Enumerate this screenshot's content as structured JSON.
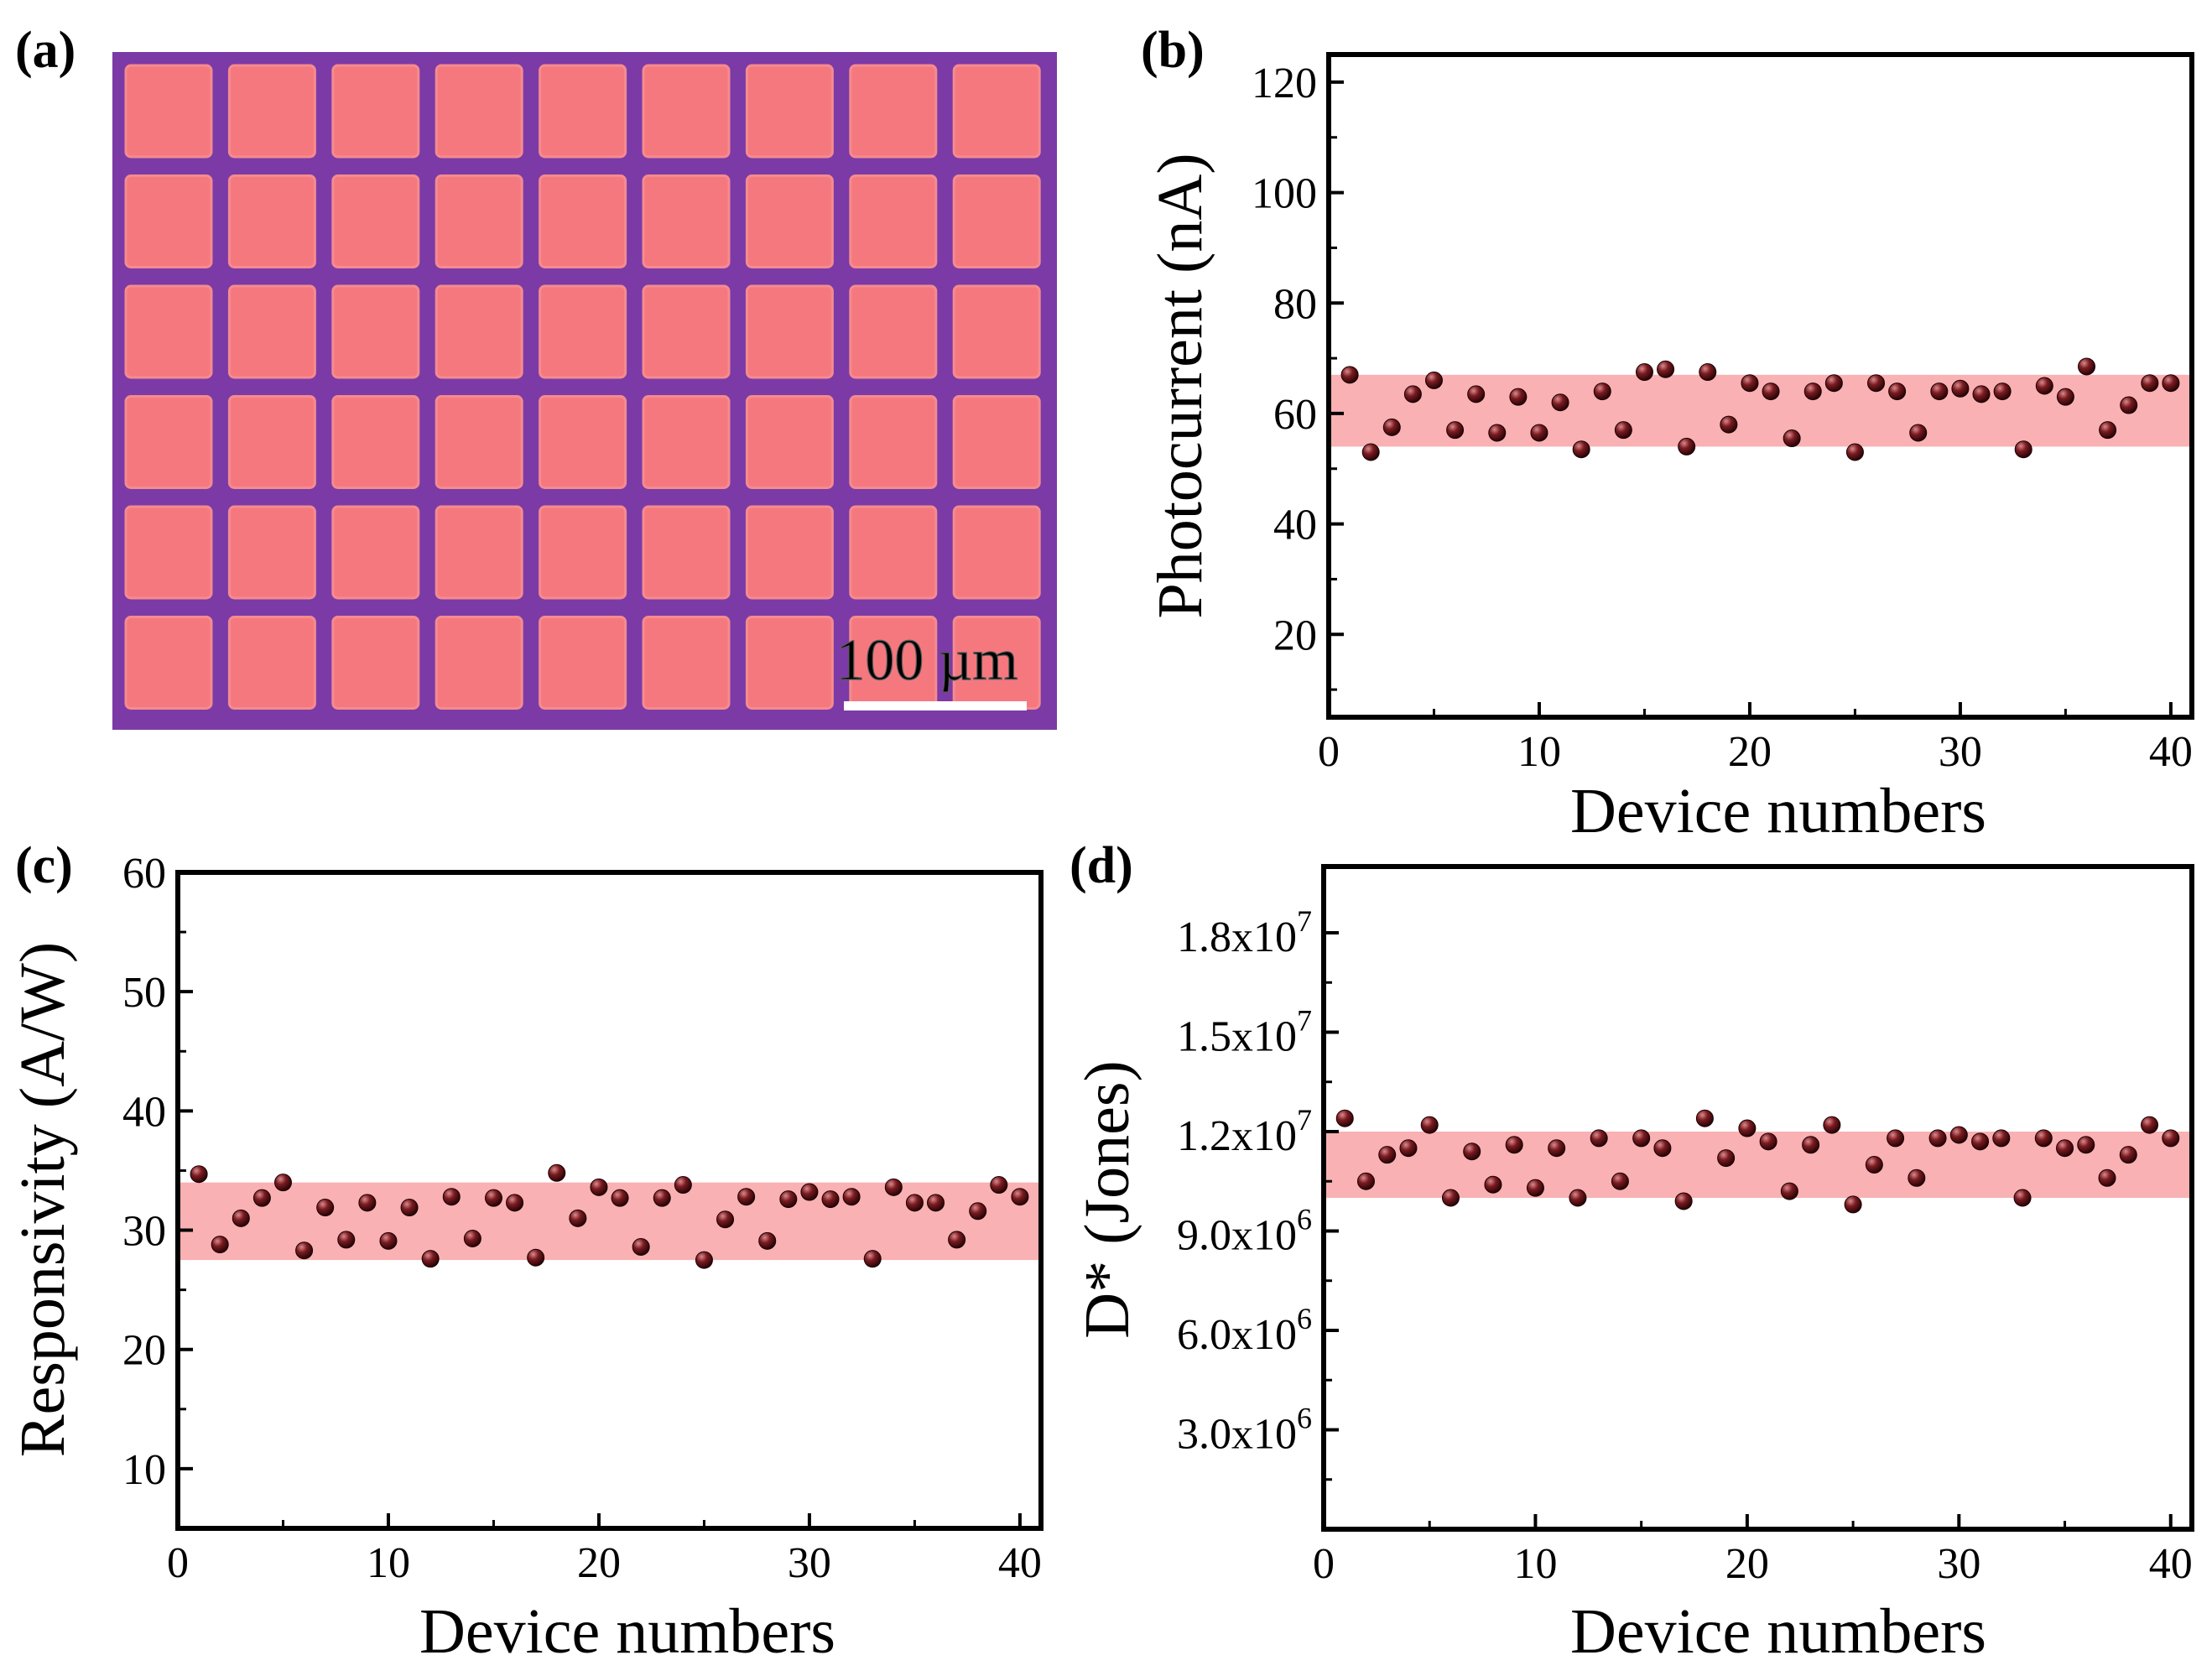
{
  "figure": {
    "panel_labels": [
      "(a)",
      "(b)",
      "(c)",
      "(d)"
    ]
  },
  "micrograph": {
    "scale_bar_label": "100 µm",
    "rows": 6,
    "cols": 9,
    "colors": {
      "background": "#7b3aa6",
      "pad": "#f6787f",
      "pad_edge": "#f48b8f",
      "scale_bar": "#ffffff"
    }
  },
  "chart_data": [
    {
      "panel": "(b)",
      "type": "scatter",
      "xlabel": "Device numbers",
      "ylabel": "Photocurrent (nA)",
      "xlim": [
        0,
        41
      ],
      "ylim": [
        5,
        125
      ],
      "xticks": [
        0,
        10,
        20,
        30,
        40
      ],
      "xtick_labels": [
        "0",
        "10",
        "20",
        "30",
        "40"
      ],
      "yticks": [
        20,
        40,
        60,
        80,
        100,
        120
      ],
      "ytick_labels": [
        "20",
        "40",
        "60",
        "80",
        "100",
        "120"
      ],
      "band": [
        54,
        67
      ],
      "x": [
        1,
        2,
        3,
        4,
        5,
        6,
        7,
        8,
        9,
        10,
        11,
        12,
        13,
        14,
        15,
        16,
        17,
        18,
        19,
        20,
        21,
        22,
        23,
        24,
        25,
        26,
        27,
        28,
        29,
        30,
        31,
        32,
        33,
        34,
        35,
        36,
        37,
        38,
        39,
        40
      ],
      "values": [
        67,
        53,
        57.5,
        63.5,
        66,
        57,
        63.5,
        56.5,
        63,
        56.5,
        62,
        53.5,
        64,
        57,
        67.5,
        68,
        54,
        67.5,
        58,
        65.5,
        64,
        55.5,
        64,
        65.5,
        53,
        65.5,
        64,
        56.5,
        64,
        64.5,
        63.5,
        64,
        53.5,
        65,
        63,
        68.5,
        57,
        61.5,
        65.5,
        65.5
      ]
    },
    {
      "panel": "(c)",
      "type": "scatter",
      "xlabel": "Device numbers",
      "ylabel": "Responsivity (A/W)",
      "xlim": [
        0,
        41
      ],
      "ylim": [
        5,
        60
      ],
      "xticks": [
        0,
        10,
        20,
        30,
        40
      ],
      "xtick_labels": [
        "0",
        "10",
        "20",
        "30",
        "40"
      ],
      "yticks": [
        10,
        20,
        30,
        40,
        50,
        60
      ],
      "ytick_labels": [
        "10",
        "20",
        "30",
        "40",
        "50",
        "60"
      ],
      "band": [
        27.5,
        34
      ],
      "x": [
        1,
        2,
        3,
        4,
        5,
        6,
        7,
        8,
        9,
        10,
        11,
        12,
        13,
        14,
        15,
        16,
        17,
        18,
        19,
        20,
        21,
        22,
        23,
        24,
        25,
        26,
        27,
        28,
        29,
        30,
        31,
        32,
        33,
        34,
        35,
        36,
        37,
        38,
        39,
        40
      ],
      "values": [
        34.7,
        28.8,
        31,
        32.7,
        34,
        28.3,
        31.9,
        29.2,
        32.3,
        29.1,
        31.9,
        27.6,
        32.8,
        29.3,
        32.7,
        32.3,
        27.7,
        34.8,
        31,
        33.6,
        32.7,
        28.6,
        32.7,
        33.8,
        27.5,
        30.9,
        32.8,
        29.1,
        32.6,
        33.2,
        32.6,
        32.8,
        27.6,
        33.6,
        32.3,
        32.3,
        29.2,
        31.6,
        33.8,
        32.8
      ]
    },
    {
      "panel": "(d)",
      "type": "scatter",
      "xlabel": "Device numbers",
      "ylabel": "D* (Jones)",
      "xlim": [
        0,
        41
      ],
      "ylim": [
        0,
        20000000
      ],
      "xticks": [
        0,
        10,
        20,
        30,
        40
      ],
      "xtick_labels": [
        "0",
        "10",
        "20",
        "30",
        "40"
      ],
      "yticks": [
        3000000,
        6000000,
        9000000,
        12000000,
        15000000,
        18000000
      ],
      "ytick_labels": [
        {
          "mantissa": "3.0x10",
          "exp": "6"
        },
        {
          "mantissa": "6.0x10",
          "exp": "6"
        },
        {
          "mantissa": "9.0x10",
          "exp": "6"
        },
        {
          "mantissa": "1.2x10",
          "exp": "7"
        },
        {
          "mantissa": "1.5x10",
          "exp": "7"
        },
        {
          "mantissa": "1.8x10",
          "exp": "7"
        }
      ],
      "band": [
        10000000,
        12000000
      ],
      "x": [
        1,
        2,
        3,
        4,
        5,
        6,
        7,
        8,
        9,
        10,
        11,
        12,
        13,
        14,
        15,
        16,
        17,
        18,
        19,
        20,
        21,
        22,
        23,
        24,
        25,
        26,
        27,
        28,
        29,
        30,
        31,
        32,
        33,
        34,
        35,
        36,
        37,
        38,
        39,
        40
      ],
      "values": [
        12400000,
        10500000,
        11300000,
        11500000,
        12200000,
        10000000,
        11400000,
        10400000,
        11600000,
        10300000,
        11500000,
        10000000,
        11800000,
        10500000,
        11800000,
        11500000,
        9900000,
        12400000,
        11200000,
        12100000,
        11700000,
        10200000,
        11600000,
        12200000,
        9800000,
        11000000,
        11800000,
        10600000,
        11800000,
        11900000,
        11700000,
        11800000,
        10000000,
        11800000,
        11500000,
        11600000,
        10600000,
        11300000,
        12200000,
        11800000
      ]
    }
  ],
  "colors": {
    "band": "#f9b1b4",
    "marker": "#5c0f14",
    "marker_highlight": "#c9686d",
    "axis": "#000000"
  }
}
